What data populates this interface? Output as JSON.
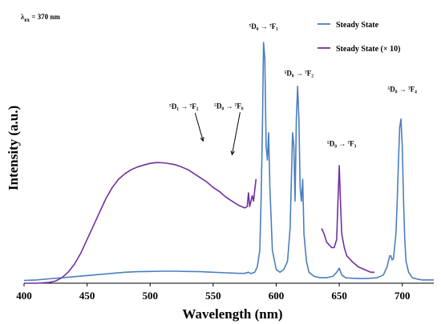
{
  "chart_data": {
    "type": "line",
    "title": "",
    "excitation_label": {
      "base": "λ",
      "sub": "ex",
      "rest": " = 370 nm"
    },
    "xlabel": "Wavelength (nm)",
    "ylabel": "Intensity (a.u.)",
    "xlim": [
      400,
      725
    ],
    "ylim": [
      0,
      1.0
    ],
    "xticks": [
      400,
      450,
      500,
      550,
      600,
      650,
      700
    ],
    "grid": false,
    "legend_position": "top-right",
    "series": [
      {
        "name": "Steady State",
        "color": "#4a7fbf",
        "x": [
          400,
          410,
          420,
          430,
          440,
          450,
          460,
          470,
          480,
          490,
          500,
          510,
          520,
          530,
          540,
          550,
          560,
          565,
          570,
          575,
          578,
          580,
          583,
          585,
          587,
          588,
          589,
          590,
          591,
          592,
          593,
          594,
          595,
          597,
          600,
          603,
          606,
          609,
          611,
          613,
          614,
          615,
          616,
          617,
          618,
          619,
          620,
          621,
          622,
          624,
          626,
          630,
          635,
          640,
          645,
          648,
          650,
          652,
          655,
          660,
          665,
          670,
          675,
          680,
          685,
          688,
          690,
          691,
          692,
          693,
          695,
          696,
          697,
          698,
          699,
          700,
          701,
          702,
          703,
          705,
          708,
          712,
          716,
          720,
          725
        ],
        "y": [
          0.01,
          0.012,
          0.016,
          0.02,
          0.024,
          0.028,
          0.032,
          0.036,
          0.04,
          0.042,
          0.043,
          0.044,
          0.044,
          0.043,
          0.042,
          0.04,
          0.038,
          0.037,
          0.036,
          0.036,
          0.04,
          0.035,
          0.04,
          0.06,
          0.12,
          0.3,
          0.55,
          0.88,
          0.82,
          0.5,
          0.45,
          0.55,
          0.35,
          0.12,
          0.05,
          0.04,
          0.05,
          0.08,
          0.2,
          0.55,
          0.5,
          0.3,
          0.6,
          0.72,
          0.6,
          0.35,
          0.3,
          0.38,
          0.18,
          0.08,
          0.04,
          0.025,
          0.02,
          0.02,
          0.025,
          0.04,
          0.055,
          0.03,
          0.02,
          0.018,
          0.017,
          0.017,
          0.018,
          0.02,
          0.03,
          0.06,
          0.1,
          0.1,
          0.085,
          0.09,
          0.18,
          0.3,
          0.45,
          0.57,
          0.6,
          0.5,
          0.3,
          0.16,
          0.08,
          0.04,
          0.02,
          0.015,
          0.012,
          0.012,
          0.012
        ]
      },
      {
        "name": "Steady State (× 10)",
        "color": "#7030a0",
        "segments": [
          {
            "x": [
              400,
              410,
              420,
              425,
              430,
              435,
              440,
              445,
              450,
              455,
              460,
              465,
              470,
              475,
              480,
              485,
              490,
              495,
              500,
              505,
              510,
              515,
              520,
              525,
              530,
              535,
              540,
              545,
              550,
              555,
              560,
              565,
              570,
              575,
              577,
              578,
              579,
              580,
              581,
              582,
              583,
              584
            ],
            "y": [
              0.0,
              0.0,
              0.003,
              0.008,
              0.02,
              0.04,
              0.07,
              0.11,
              0.16,
              0.21,
              0.26,
              0.31,
              0.35,
              0.38,
              0.4,
              0.415,
              0.425,
              0.432,
              0.438,
              0.441,
              0.44,
              0.437,
              0.433,
              0.425,
              0.415,
              0.4,
              0.385,
              0.37,
              0.35,
              0.335,
              0.315,
              0.3,
              0.285,
              0.275,
              0.28,
              0.33,
              0.28,
              0.3,
              0.32,
              0.3,
              0.34,
              0.38
            ]
          },
          {
            "x": [
              636,
              638,
              640,
              642,
              644,
              646,
              648,
              649,
              650,
              651,
              652,
              654,
              656,
              660,
              665,
              670,
              675,
              678
            ],
            "y": [
              0.2,
              0.18,
              0.15,
              0.14,
              0.13,
              0.13,
              0.16,
              0.3,
              0.43,
              0.3,
              0.18,
              0.13,
              0.1,
              0.08,
              0.06,
              0.05,
              0.04,
              0.04
            ]
          }
        ]
      }
    ],
    "annotations": [
      {
        "text": "⁵D₀ → ⁷F₁",
        "at_x": 590,
        "at_y": 0.9
      },
      {
        "text": "⁵D₀ → ⁷F₂",
        "at_x": 618,
        "at_y": 0.73
      },
      {
        "text": "⁵D₁ → ⁷F₂",
        "at_x": 542,
        "at_y": 0.52
      },
      {
        "text": "⁵D₀ → ⁷F₀",
        "at_x": 565,
        "at_y": 0.47
      },
      {
        "text": "⁵D₀ → ⁷F₃",
        "at_x": 652,
        "at_y": 0.46
      },
      {
        "text": "⁵D₀ → ⁷F₄",
        "at_x": 700,
        "at_y": 0.66
      }
    ]
  }
}
